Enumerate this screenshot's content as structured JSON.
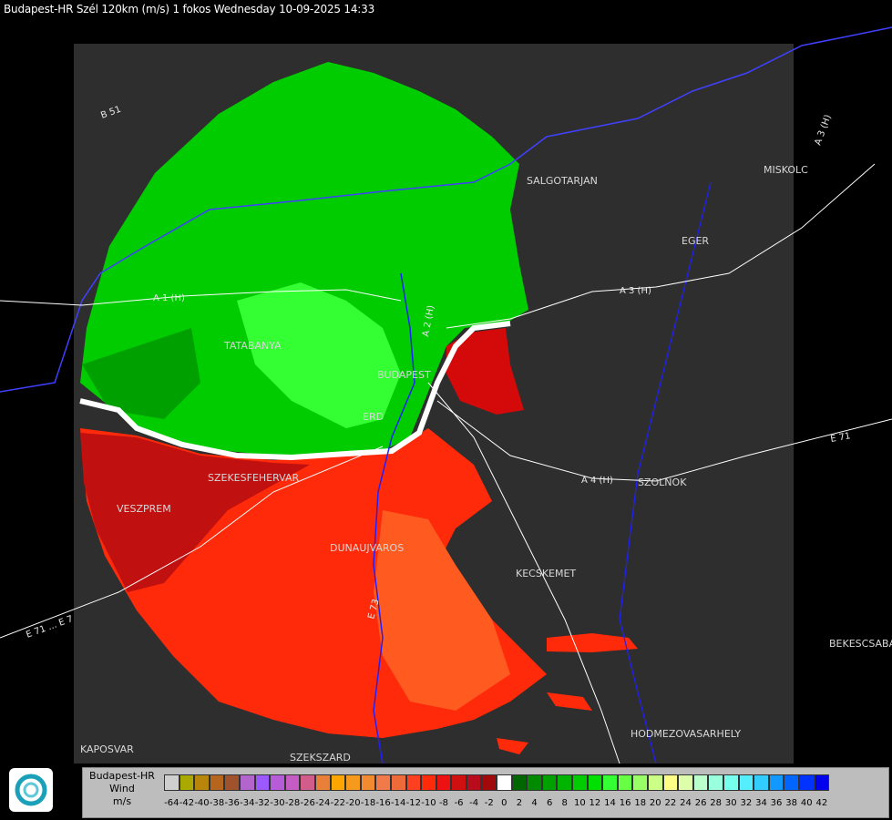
{
  "header": {
    "title": "Budapest-HR Szél 120km (m/s) 1 fokos Wednesday 10-09-2025 14:33"
  },
  "map": {
    "cities": [
      {
        "id": "salgotarjan",
        "name": "SALGOTARJAN"
      },
      {
        "id": "miskolc",
        "name": "MISKOLC"
      },
      {
        "id": "eger",
        "name": "EGER"
      },
      {
        "id": "tatabanya",
        "name": "TATABANYA"
      },
      {
        "id": "budapest",
        "name": "BUDAPEST"
      },
      {
        "id": "erd",
        "name": "ERD"
      },
      {
        "id": "szekesfehervar",
        "name": "SZEKESFEHERVAR"
      },
      {
        "id": "veszprem",
        "name": "VESZPREM"
      },
      {
        "id": "szolnok",
        "name": "SZOLNOK"
      },
      {
        "id": "dunaujvaros",
        "name": "DUNAUJVAROS"
      },
      {
        "id": "kecskemet",
        "name": "KECSKEMET"
      },
      {
        "id": "bekescsaba",
        "name": "BEKESCSABA"
      },
      {
        "id": "hodmezovasarhely",
        "name": "HODMEZOVASARHELY"
      },
      {
        "id": "kaposvar",
        "name": "KAPOSVAR"
      },
      {
        "id": "szekszard",
        "name": "SZEKSZARD"
      }
    ],
    "roads": [
      {
        "id": "b51",
        "name": "B 51"
      },
      {
        "id": "m1",
        "name": "A 1 (H)"
      },
      {
        "id": "a3",
        "name": "A 3 (H)"
      },
      {
        "id": "a3b",
        "name": "A 3 (H)"
      },
      {
        "id": "m4",
        "name": "A 4 (H)"
      },
      {
        "id": "e71",
        "name": "E 71 ... E 7"
      },
      {
        "id": "e71b",
        "name": "E 71"
      },
      {
        "id": "e73",
        "name": "E 73"
      },
      {
        "id": "a2",
        "name": "A 2 (H)"
      }
    ],
    "colors": {
      "background": "#000000",
      "radar_area": "#2e2e2e",
      "borders": "#1a1aff",
      "roads": "#ffffff"
    }
  },
  "legend": {
    "line1": "Budapest-HR",
    "line2": "Wind",
    "line3": "m/s",
    "scale": [
      {
        "label": "-64",
        "color": "#cfcfcf"
      },
      {
        "label": "-42",
        "color": "#a9a900"
      },
      {
        "label": "-40",
        "color": "#b8860b"
      },
      {
        "label": "-38",
        "color": "#b5651d"
      },
      {
        "label": "-36",
        "color": "#a0522d"
      },
      {
        "label": "-34",
        "color": "#b266cc"
      },
      {
        "label": "-32",
        "color": "#9b59ff"
      },
      {
        "label": "-30",
        "color": "#b65cd8"
      },
      {
        "label": "-28",
        "color": "#c45cc4"
      },
      {
        "label": "-26",
        "color": "#d25c8a"
      },
      {
        "label": "-24",
        "color": "#e8803a"
      },
      {
        "label": "-22",
        "color": "#ffa500"
      },
      {
        "label": "-20",
        "color": "#f59a1c"
      },
      {
        "label": "-18",
        "color": "#f28a30"
      },
      {
        "label": "-16",
        "color": "#f07a4a"
      },
      {
        "label": "-14",
        "color": "#ef6a3a"
      },
      {
        "label": "-12",
        "color": "#ff4020"
      },
      {
        "label": "-10",
        "color": "#ff2a0a"
      },
      {
        "label": "-8",
        "color": "#ee1111"
      },
      {
        "label": "-6",
        "color": "#d01010"
      },
      {
        "label": "-4",
        "color": "#b80b1c"
      },
      {
        "label": "-2",
        "color": "#a00a0a"
      },
      {
        "label": "0",
        "color": "#ffffff"
      },
      {
        "label": "2",
        "color": "#006600"
      },
      {
        "label": "4",
        "color": "#008a00"
      },
      {
        "label": "6",
        "color": "#00a000"
      },
      {
        "label": "8",
        "color": "#00b400"
      },
      {
        "label": "10",
        "color": "#00cc00"
      },
      {
        "label": "12",
        "color": "#00e000"
      },
      {
        "label": "14",
        "color": "#33ff33"
      },
      {
        "label": "16",
        "color": "#66ff44"
      },
      {
        "label": "18",
        "color": "#99ff66"
      },
      {
        "label": "20",
        "color": "#ccff88"
      },
      {
        "label": "22",
        "color": "#ffff88"
      },
      {
        "label": "24",
        "color": "#ddffaa"
      },
      {
        "label": "26",
        "color": "#bbffcc"
      },
      {
        "label": "28",
        "color": "#99ffdd"
      },
      {
        "label": "30",
        "color": "#77ffee"
      },
      {
        "label": "32",
        "color": "#55eeff"
      },
      {
        "label": "34",
        "color": "#33ccff"
      },
      {
        "label": "36",
        "color": "#1199ff"
      },
      {
        "label": "38",
        "color": "#0066ff"
      },
      {
        "label": "40",
        "color": "#0033ff"
      },
      {
        "label": "42",
        "color": "#0000ee"
      }
    ]
  }
}
